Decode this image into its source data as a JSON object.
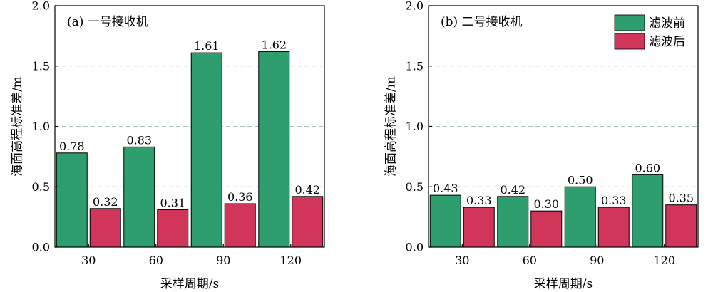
{
  "colors": {
    "before": "#2e9e6e",
    "after": "#d1365a",
    "grid": "#a9c4c0",
    "axis": "#000000"
  },
  "legend": {
    "before_label": "滤波前",
    "after_label": "滤波后"
  },
  "chart_data": [
    {
      "type": "bar",
      "panel_label": "(a) 一号接收机",
      "xlabel": "采样周期/s",
      "ylabel": "海面高程标准差/m",
      "categories": [
        "30",
        "60",
        "90",
        "120"
      ],
      "ylim": [
        0,
        2.0
      ],
      "yticks": [
        "0.0",
        "0.5",
        "1.0",
        "1.5",
        "2.0"
      ],
      "grid": "horizontal dashed",
      "legend": "none",
      "series": [
        {
          "name": "滤波前",
          "values": [
            0.78,
            0.83,
            1.61,
            1.62
          ],
          "labels": [
            "0.78",
            "0.83",
            "1.61",
            "1.62"
          ]
        },
        {
          "name": "滤波后",
          "values": [
            0.32,
            0.31,
            0.36,
            0.42
          ],
          "labels": [
            "0.32",
            "0.31",
            "0.36",
            "0.42"
          ]
        }
      ]
    },
    {
      "type": "bar",
      "panel_label": "(b) 二号接收机",
      "xlabel": "采样周期/s",
      "ylabel": "海面高程标准差/m",
      "categories": [
        "30",
        "60",
        "90",
        "120"
      ],
      "ylim": [
        0,
        2.0
      ],
      "yticks": [
        "0.0",
        "0.5",
        "1.0",
        "1.5",
        "2.0"
      ],
      "grid": "horizontal dashed",
      "legend": "top-right",
      "series": [
        {
          "name": "滤波前",
          "values": [
            0.43,
            0.42,
            0.5,
            0.6
          ],
          "labels": [
            "0.43",
            "0.42",
            "0.50",
            "0.60"
          ]
        },
        {
          "name": "滤波后",
          "values": [
            0.33,
            0.3,
            0.33,
            0.35
          ],
          "labels": [
            "0.33",
            "0.30",
            "0.33",
            "0.35"
          ]
        }
      ]
    }
  ]
}
